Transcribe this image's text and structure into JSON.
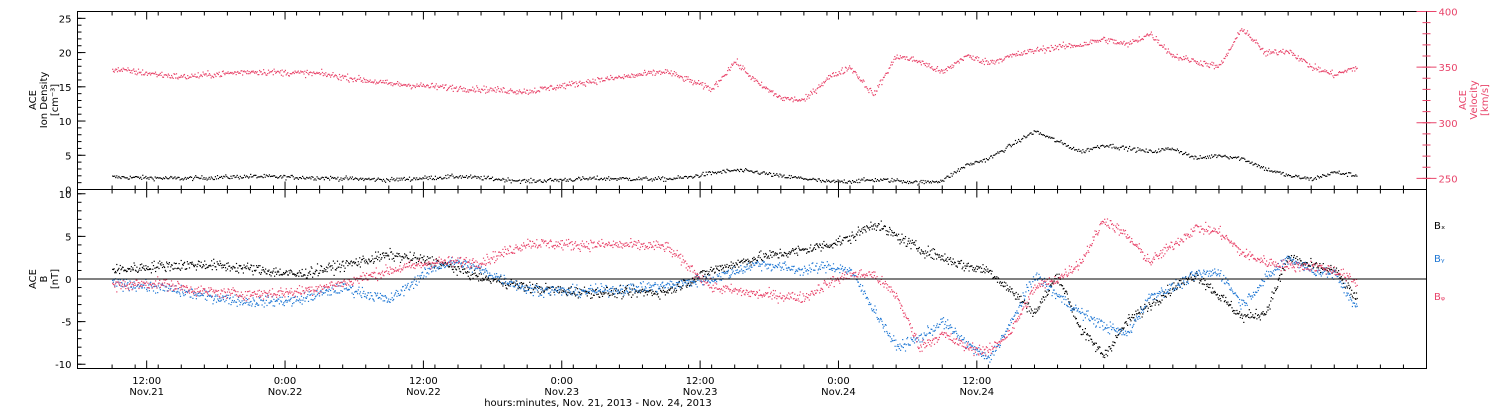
{
  "chart_data": [
    {
      "type": "scatter",
      "panel": "top",
      "ylabel_lines": [
        "ACE",
        "Ion Density",
        "[cm⁻³]"
      ],
      "ylim": [
        0,
        26
      ],
      "yticks": [
        0,
        5,
        10,
        15,
        20,
        25
      ],
      "y2label_lines": [
        "ACE",
        "Velocity",
        "[km/s]"
      ],
      "y2lim": [
        240,
        400
      ],
      "y2ticks": [
        250,
        300,
        350,
        400
      ],
      "series": [
        {
          "axis": "left",
          "color": "#000000",
          "x_hours": [
            0,
            6,
            12,
            18,
            24,
            30,
            36,
            42,
            48,
            50,
            52,
            54,
            56,
            58,
            60,
            62,
            64,
            66,
            68,
            70,
            72,
            74,
            76,
            78,
            80,
            82,
            84,
            86,
            88,
            90,
            92,
            94,
            96,
            98,
            100,
            102,
            104,
            106,
            108
          ],
          "y": [
            1.8,
            1.6,
            1.9,
            1.7,
            1.4,
            1.9,
            1.2,
            1.6,
            1.5,
            1.8,
            2.4,
            2.8,
            2.5,
            1.9,
            1.6,
            1.1,
            1.2,
            1.4,
            1.3,
            1.0,
            1.3,
            3.5,
            4.5,
            6.5,
            8.5,
            7.0,
            5.5,
            6.5,
            6.0,
            5.5,
            6.0,
            4.5,
            5.0,
            4.5,
            3.0,
            2.0,
            1.5,
            2.5,
            2.0
          ]
        },
        {
          "axis": "right",
          "color": "#e8446a",
          "x_hours": [
            0,
            6,
            12,
            18,
            24,
            30,
            36,
            42,
            48,
            52,
            54,
            56,
            58,
            60,
            62,
            64,
            66,
            68,
            70,
            72,
            74,
            76,
            78,
            80,
            82,
            84,
            86,
            88,
            90,
            92,
            94,
            96,
            98,
            100,
            102,
            104,
            106,
            108
          ],
          "y": [
            348,
            341,
            346,
            344,
            335,
            331,
            328,
            338,
            346,
            330,
            355,
            335,
            322,
            320,
            340,
            350,
            325,
            360,
            355,
            345,
            360,
            354,
            360,
            365,
            368,
            370,
            375,
            370,
            380,
            360,
            355,
            350,
            385,
            362,
            365,
            350,
            343,
            350
          ]
        }
      ]
    },
    {
      "type": "scatter",
      "panel": "bottom",
      "ylabel_lines": [
        "ACE",
        "B",
        "[nT]"
      ],
      "ylim": [
        -10.5,
        10.5
      ],
      "yticks": [
        -10,
        -5,
        0,
        5,
        10
      ],
      "zero_line": true,
      "legend": [
        "Bₓ",
        "Bᵧ",
        "Bᵩ"
      ],
      "legend_position": "right",
      "series": [
        {
          "color": "#000000",
          "x_hours": [
            0,
            4,
            8,
            12,
            16,
            20,
            24,
            28,
            32,
            36,
            40,
            44,
            48,
            52,
            56,
            60,
            62,
            64,
            66,
            68,
            70,
            72,
            74,
            76,
            78,
            80,
            82,
            84,
            86,
            88,
            90,
            92,
            94,
            96,
            98,
            100,
            102,
            104,
            106,
            108
          ],
          "y": [
            1.0,
            1.5,
            1.7,
            1.2,
            0.5,
            1.6,
            2.8,
            2.0,
            0.2,
            -1.0,
            -1.5,
            -1.6,
            -1.5,
            1.0,
            2.5,
            3.4,
            4.0,
            4.8,
            6.5,
            5.0,
            3.5,
            2.5,
            1.5,
            1.0,
            -1.5,
            -4.0,
            0.5,
            -6.0,
            -9.0,
            -5.0,
            -3.0,
            -1.0,
            0.5,
            -2.0,
            -4.5,
            -4.0,
            2.5,
            1.5,
            1.0,
            -2.5
          ]
        },
        {
          "color": "#1f77d4",
          "x_hours": [
            0,
            4,
            8,
            12,
            16,
            20,
            24,
            28,
            30,
            32,
            36,
            40,
            44,
            48,
            52,
            56,
            60,
            62,
            64,
            66,
            68,
            70,
            72,
            74,
            76,
            78,
            80,
            82,
            84,
            86,
            88,
            90,
            92,
            94,
            96,
            98,
            100,
            102,
            104,
            106,
            108
          ],
          "y": [
            -0.5,
            -1.0,
            -2.0,
            -2.7,
            -2.5,
            -1.0,
            -2.5,
            1.5,
            2.0,
            1.0,
            -1.2,
            -1.5,
            -1.2,
            -0.8,
            0.0,
            1.8,
            1.0,
            1.5,
            1.0,
            -3.5,
            -8.0,
            -7.0,
            -5.0,
            -7.5,
            -9.5,
            -5.0,
            0.5,
            -2.0,
            -4.0,
            -5.5,
            -6.5,
            -2.0,
            -1.0,
            0.5,
            0.8,
            -3.0,
            0.0,
            2.5,
            1.0,
            0.5,
            -3.5
          ]
        },
        {
          "color": "#e8446a",
          "x_hours": [
            0,
            4,
            8,
            12,
            16,
            20,
            24,
            28,
            32,
            36,
            40,
            44,
            48,
            52,
            56,
            60,
            62,
            64,
            66,
            68,
            70,
            72,
            74,
            76,
            78,
            80,
            82,
            84,
            86,
            88,
            90,
            92,
            94,
            96,
            98,
            100,
            102,
            104,
            106,
            108
          ],
          "y": [
            -0.8,
            -0.5,
            -1.5,
            -1.8,
            -1.5,
            -0.5,
            1.0,
            2.0,
            2.0,
            4.2,
            4.0,
            4.0,
            3.8,
            -1.0,
            -1.8,
            -2.2,
            -0.5,
            0.5,
            0.5,
            -2.0,
            -8.0,
            -6.5,
            -8.0,
            -8.5,
            -6.0,
            -1.0,
            0.0,
            2.0,
            7.0,
            5.0,
            2.0,
            4.0,
            6.0,
            5.5,
            3.0,
            2.0,
            1.5,
            1.5,
            1.0,
            -0.5
          ]
        }
      ]
    }
  ],
  "x_axis": {
    "range_hours": [
      -3,
      114
    ],
    "major_ticks": [
      {
        "hour": 3,
        "time": "12:00",
        "date": "Nov.21"
      },
      {
        "hour": 15,
        "time": "0:00",
        "date": "Nov.22"
      },
      {
        "hour": 27,
        "time": "12:00",
        "date": "Nov.22"
      },
      {
        "hour": 39,
        "time": "0:00",
        "date": "Nov.23"
      },
      {
        "hour": 51,
        "time": "12:00",
        "date": "Nov.23"
      },
      {
        "hour": 63,
        "time": "0:00",
        "date": "Nov.24"
      },
      {
        "hour": 75,
        "time": "12:00",
        "date": "Nov.24"
      }
    ],
    "xlabel": "hours:minutes, Nov. 21, 2013 - Nov. 24, 2013"
  }
}
